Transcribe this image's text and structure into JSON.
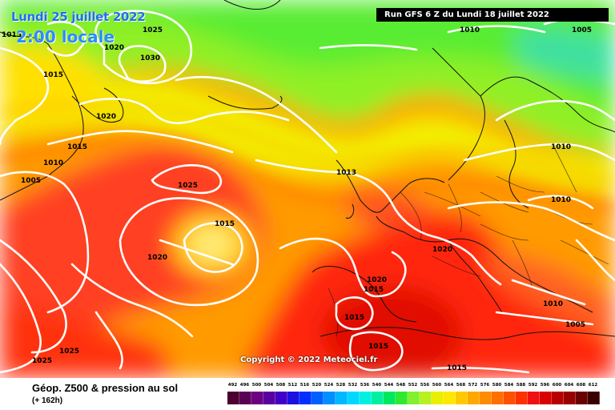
{
  "header": {
    "date": "Lundi 25 juillet 2022",
    "time": "2:00 locale",
    "run": "Run GFS 6 Z du Lundi 18 juillet 2022"
  },
  "copyright": "Copyright © 2022 Meteociel.fr",
  "footer": {
    "title": "Géop. Z500 & pression au sol",
    "subtitle": "(+ 162h)"
  },
  "pressure_labels": [
    "1015",
    "1025",
    "1020",
    "1030",
    "1015",
    "1020",
    "1015",
    "1010",
    "1005",
    "1025",
    "1015",
    "1020",
    "1025",
    "1025",
    "1010",
    "1005",
    "1010",
    "1010",
    "1013",
    "1020",
    "1020",
    "1015",
    "1015",
    "1015",
    "1010",
    "1005",
    "1015"
  ],
  "legend": {
    "values": [
      492,
      496,
      500,
      504,
      508,
      512,
      516,
      520,
      524,
      528,
      532,
      536,
      540,
      544,
      548,
      552,
      556,
      560,
      564,
      568,
      572,
      576,
      580,
      584,
      588,
      592,
      596,
      600,
      604,
      608,
      612
    ],
    "colors": [
      "#4b0030",
      "#5a0055",
      "#6d0080",
      "#5a00a0",
      "#4000c8",
      "#1a10e0",
      "#0030ff",
      "#0060ff",
      "#0090ff",
      "#00b8ff",
      "#00d8ff",
      "#00f0e0",
      "#00f0a0",
      "#00e860",
      "#30e830",
      "#80f030",
      "#b8f020",
      "#e8f000",
      "#ffe800",
      "#ffc800",
      "#ffa800",
      "#ff8c00",
      "#ff7000",
      "#ff5000",
      "#ff3000",
      "#f01010",
      "#d80000",
      "#b80000",
      "#980000",
      "#6a0000",
      "#3a0000"
    ]
  }
}
